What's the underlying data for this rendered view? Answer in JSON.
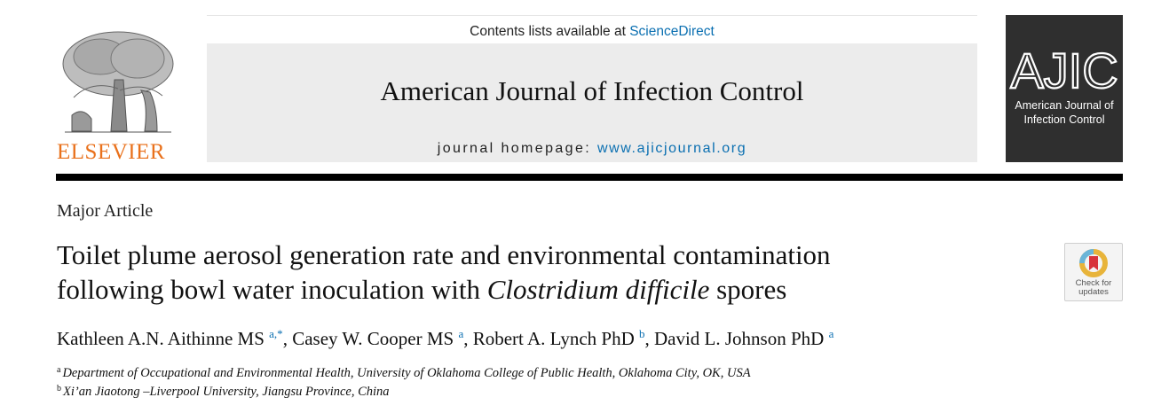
{
  "publisher": {
    "name": "ELSEVIER"
  },
  "banner": {
    "contents_prefix": "Contents lists available at",
    "contents_link": "ScienceDirect",
    "journal_title": "American Journal of Infection Control",
    "homepage_prefix": "journal homepage:",
    "homepage_link": "www.ajicjournal.org"
  },
  "cover": {
    "abbrev": "AJIC",
    "line1": "American Journal of",
    "line2": "Infection Control"
  },
  "article": {
    "type": "Major Article",
    "title_line1": "Toilet plume aerosol generation rate and environmental contamination",
    "title_line2_pre": "following bowl water inoculation with",
    "title_line2_italic": "Clostridium difficile",
    "title_line2_post": "spores"
  },
  "check_updates": {
    "line1": "Check for",
    "line2": "updates"
  },
  "authors": [
    {
      "name": "Kathleen A.N. Aithinne MS",
      "sup": "a,*",
      "sep": ", "
    },
    {
      "name": "Casey W. Cooper MS",
      "sup": "a",
      "sep": ", "
    },
    {
      "name": "Robert A. Lynch PhD",
      "sup": "b",
      "sep": ", "
    },
    {
      "name": "David L. Johnson PhD",
      "sup": "a",
      "sep": ""
    }
  ],
  "affiliations": [
    {
      "mark": "a",
      "text": "Department of Occupational and Environmental Health, University of Oklahoma College of Public Health, Oklahoma City, OK, USA"
    },
    {
      "mark": "b",
      "text": "Xi’an Jiaotong –Liverpool University, Jiangsu Province, China"
    }
  ],
  "colors": {
    "link": "#0a6fb1",
    "elsevier": "#e9711c",
    "cover_bg": "#2f2f2f",
    "banner_bg": "#ececec"
  }
}
